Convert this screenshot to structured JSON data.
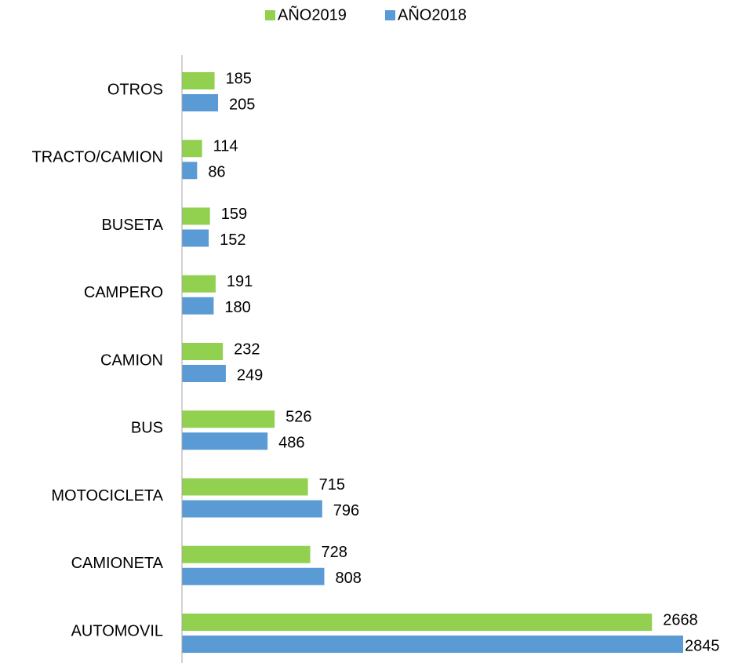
{
  "chart_data": {
    "type": "hbar",
    "categories": [
      "OTROS",
      "TRACTO/CAMION",
      "BUSETA",
      "CAMPERO",
      "CAMION",
      "BUS",
      "MOTOCICLETA",
      "CAMIONETA",
      "AUTOMOVIL"
    ],
    "series": [
      {
        "name": "AÑO2019",
        "color": "#92d050",
        "values": [
          185,
          114,
          159,
          191,
          232,
          526,
          715,
          728,
          2668
        ]
      },
      {
        "name": "AÑO2018",
        "color": "#5b9bd5",
        "values": [
          205,
          86,
          152,
          180,
          249,
          486,
          796,
          808,
          2845
        ]
      }
    ],
    "legend": "top"
  }
}
